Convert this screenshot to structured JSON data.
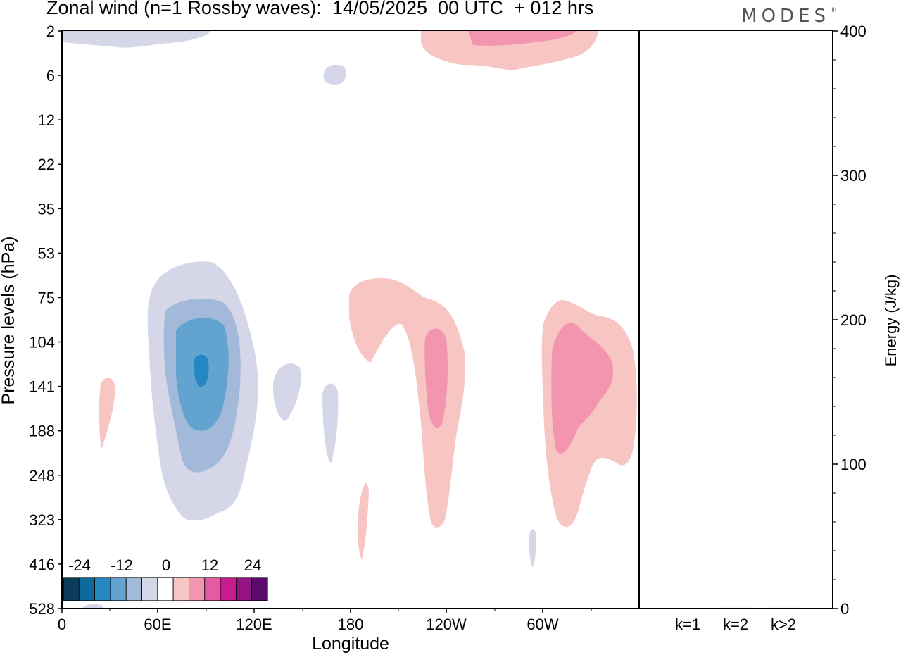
{
  "title": "Zonal wind (n=1 Rossby waves):  14/05/2025  00 UTC  + 012 hrs",
  "logo": "MODES",
  "colors": {
    "levels": [
      "#0b3d5a",
      "#0e6a9b",
      "#2487c2",
      "#63a3cf",
      "#a2b9d9",
      "#d5d6e7",
      "#ffffff",
      "#f8c6c2",
      "#f495b0",
      "#e55aa3",
      "#c81c8e",
      "#951483",
      "#5c0a6c"
    ]
  },
  "chart_data": [
    {
      "type": "heatmap",
      "title": "Zonal wind (n=1 Rossby waves)",
      "xlabel": "Longitude",
      "ylabel": "Pressure levels (hPa)",
      "x_ticks": [
        "0",
        "60E",
        "120E",
        "180",
        "120W",
        "60W"
      ],
      "y_levels": [
        "2",
        "6",
        "12",
        "22",
        "35",
        "53",
        "75",
        "104",
        "141",
        "188",
        "248",
        "323",
        "416",
        "528"
      ],
      "colorbar": {
        "labels": [
          "-24",
          "-12",
          "0",
          "12",
          "24"
        ]
      },
      "features": [
        {
          "name": "negative maximum",
          "lon": 85,
          "pressure": 130,
          "value": -24
        },
        {
          "name": "positive maximum",
          "lon": 234,
          "pressure": 130,
          "value": 12
        },
        {
          "name": "positive maximum",
          "lon": 300,
          "pressure": 140,
          "value": 12
        }
      ]
    },
    {
      "type": "bar",
      "ylabel": "Energy (J/kg)",
      "categories": [
        "k=1",
        "k=2",
        "k>2"
      ],
      "values": [
        0.3,
        0.5,
        0.5
      ],
      "ylim": [
        0,
        400
      ],
      "yticks": [
        "0",
        "100",
        "200",
        "300",
        "400"
      ]
    }
  ]
}
